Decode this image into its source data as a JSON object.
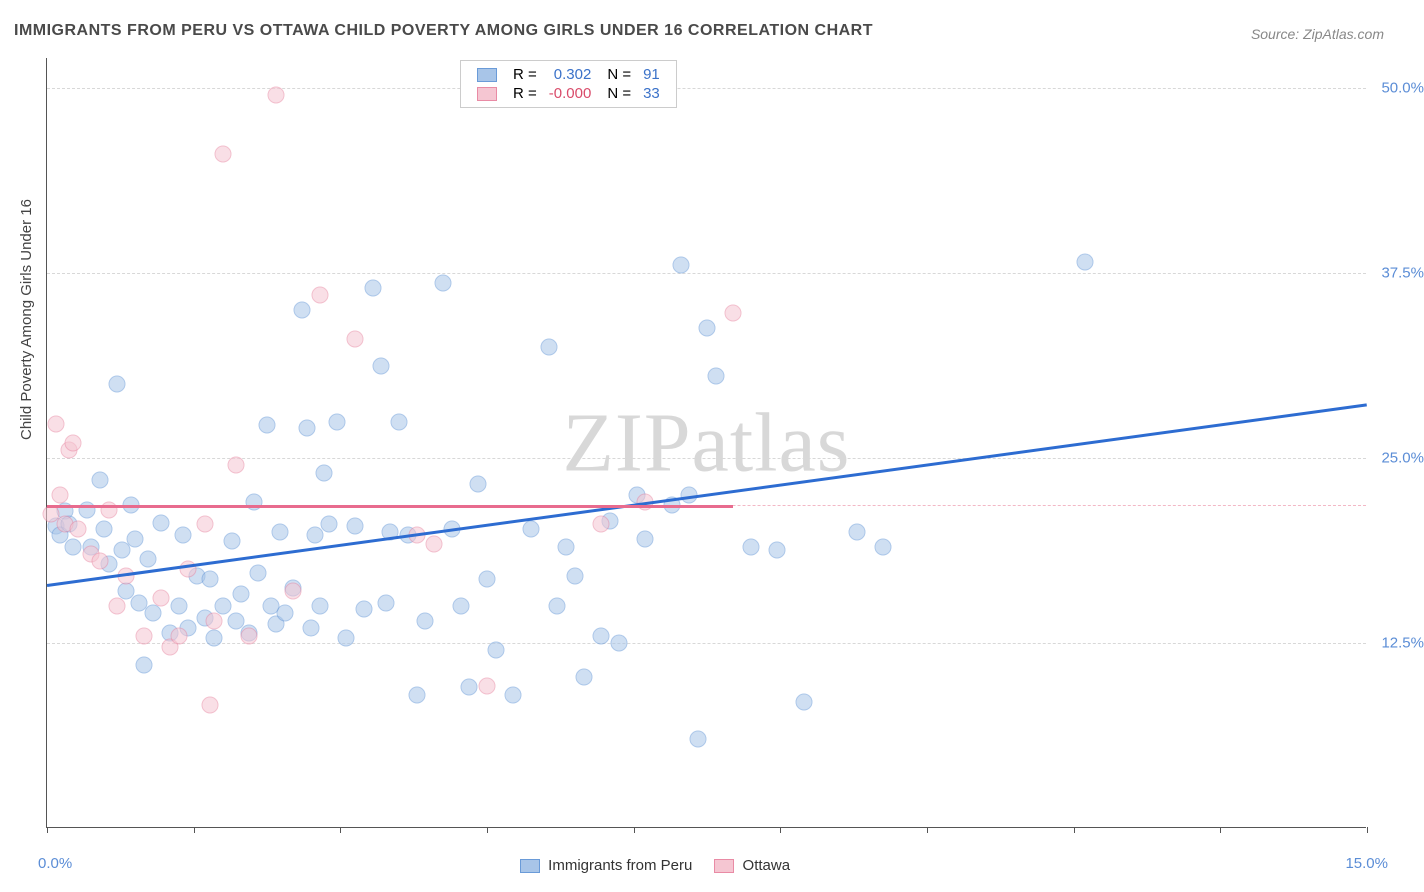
{
  "title": "IMMIGRANTS FROM PERU VS OTTAWA CHILD POVERTY AMONG GIRLS UNDER 16 CORRELATION CHART",
  "source": "Source: ZipAtlas.com",
  "y_axis_title": "Child Poverty Among Girls Under 16",
  "watermark_text": "ZIPatlas",
  "chart": {
    "type": "scatter",
    "xlim": [
      0,
      15
    ],
    "ylim": [
      0,
      52
    ],
    "x_ticks": [
      0,
      1.67,
      3.33,
      5.0,
      6.67,
      8.33,
      10.0,
      11.67,
      13.33,
      15.0
    ],
    "x_labels": {
      "0": "0.0%",
      "15": "15.0%"
    },
    "y_ticks": [
      12.5,
      25.0,
      37.5,
      50.0
    ],
    "y_labels": [
      "12.5%",
      "25.0%",
      "37.5%",
      "50.0%"
    ],
    "grid_color": "#d8d8d8",
    "background_color": "#ffffff",
    "axis_label_color": "#5b8dd6",
    "axis_label_fontsize": 15,
    "title_fontsize": 16,
    "title_color": "#4a4a4a",
    "point_radius": 8.5,
    "point_opacity": 0.55
  },
  "series": [
    {
      "name": "Immigrants from Peru",
      "color_fill": "#a8c5e8",
      "color_stroke": "#6a9bd8",
      "trend_color": "#2d6cd1",
      "trend_width": 2.5,
      "R": "0.302",
      "N": "91",
      "trend": {
        "x1": 0,
        "y1": 16.5,
        "x2": 15,
        "y2": 28.7
      },
      "points": [
        [
          0.1,
          20.4
        ],
        [
          0.15,
          19.8
        ],
        [
          0.2,
          21.4
        ],
        [
          0.25,
          20.5
        ],
        [
          0.3,
          19.0
        ],
        [
          0.45,
          21.5
        ],
        [
          0.5,
          19.0
        ],
        [
          0.6,
          23.5
        ],
        [
          0.65,
          20.2
        ],
        [
          0.7,
          17.8
        ],
        [
          0.8,
          30.0
        ],
        [
          0.85,
          18.8
        ],
        [
          0.9,
          16.0
        ],
        [
          0.95,
          21.8
        ],
        [
          1.0,
          19.5
        ],
        [
          1.05,
          15.2
        ],
        [
          1.1,
          11.0
        ],
        [
          1.15,
          18.2
        ],
        [
          1.2,
          14.5
        ],
        [
          1.3,
          20.6
        ],
        [
          1.4,
          13.2
        ],
        [
          1.5,
          15.0
        ],
        [
          1.55,
          19.8
        ],
        [
          1.6,
          13.5
        ],
        [
          1.7,
          17.0
        ],
        [
          1.8,
          14.2
        ],
        [
          1.85,
          16.8
        ],
        [
          1.9,
          12.8
        ],
        [
          2.0,
          15.0
        ],
        [
          2.1,
          19.4
        ],
        [
          2.15,
          14.0
        ],
        [
          2.2,
          15.8
        ],
        [
          2.3,
          13.2
        ],
        [
          2.35,
          22.0
        ],
        [
          2.4,
          17.2
        ],
        [
          2.5,
          27.2
        ],
        [
          2.55,
          15.0
        ],
        [
          2.6,
          13.8
        ],
        [
          2.65,
          20.0
        ],
        [
          2.7,
          14.5
        ],
        [
          2.8,
          16.2
        ],
        [
          2.9,
          35.0
        ],
        [
          2.95,
          27.0
        ],
        [
          3.0,
          13.5
        ],
        [
          3.05,
          19.8
        ],
        [
          3.1,
          15.0
        ],
        [
          3.2,
          20.5
        ],
        [
          3.3,
          27.4
        ],
        [
          3.4,
          12.8
        ],
        [
          3.5,
          20.4
        ],
        [
          3.6,
          14.8
        ],
        [
          3.7,
          36.5
        ],
        [
          3.8,
          31.2
        ],
        [
          3.85,
          15.2
        ],
        [
          3.9,
          20.0
        ],
        [
          4.0,
          27.4
        ],
        [
          4.1,
          19.8
        ],
        [
          4.2,
          9.0
        ],
        [
          4.3,
          14.0
        ],
        [
          4.5,
          36.8
        ],
        [
          4.6,
          20.2
        ],
        [
          4.7,
          15.0
        ],
        [
          4.8,
          9.5
        ],
        [
          4.9,
          23.2
        ],
        [
          5.0,
          16.8
        ],
        [
          5.1,
          12.0
        ],
        [
          5.3,
          9.0
        ],
        [
          5.5,
          20.2
        ],
        [
          5.7,
          32.5
        ],
        [
          5.8,
          15.0
        ],
        [
          5.9,
          19.0
        ],
        [
          6.0,
          17.0
        ],
        [
          6.1,
          10.2
        ],
        [
          6.3,
          13.0
        ],
        [
          6.4,
          20.7
        ],
        [
          6.5,
          12.5
        ],
        [
          6.7,
          22.5
        ],
        [
          6.8,
          19.5
        ],
        [
          7.1,
          21.8
        ],
        [
          7.2,
          38.0
        ],
        [
          7.3,
          22.5
        ],
        [
          7.4,
          6.0
        ],
        [
          7.5,
          33.8
        ],
        [
          7.6,
          30.5
        ],
        [
          8.0,
          19.0
        ],
        [
          8.3,
          18.8
        ],
        [
          8.6,
          8.5
        ],
        [
          9.2,
          20.0
        ],
        [
          9.5,
          19.0
        ],
        [
          11.8,
          38.2
        ],
        [
          3.15,
          24.0
        ]
      ]
    },
    {
      "name": "Ottawa",
      "color_fill": "#f5c6d2",
      "color_stroke": "#e98ba5",
      "trend_color": "#e86b8e",
      "trend_width": 2.5,
      "R": "-0.000",
      "N": "33",
      "trend": {
        "x1": 0,
        "y1": 21.8,
        "x2": 7.8,
        "y2": 21.8
      },
      "points": [
        [
          0.05,
          21.2
        ],
        [
          0.1,
          27.3
        ],
        [
          0.15,
          22.5
        ],
        [
          0.2,
          20.5
        ],
        [
          0.25,
          25.5
        ],
        [
          0.3,
          26.0
        ],
        [
          0.35,
          20.2
        ],
        [
          0.5,
          18.5
        ],
        [
          0.6,
          18.0
        ],
        [
          0.7,
          21.5
        ],
        [
          0.8,
          15.0
        ],
        [
          0.9,
          17.0
        ],
        [
          1.1,
          13.0
        ],
        [
          1.3,
          15.5
        ],
        [
          1.4,
          12.2
        ],
        [
          1.5,
          13.0
        ],
        [
          1.6,
          17.5
        ],
        [
          1.8,
          20.5
        ],
        [
          1.85,
          8.3
        ],
        [
          1.9,
          14.0
        ],
        [
          2.0,
          45.5
        ],
        [
          2.15,
          24.5
        ],
        [
          2.3,
          13.0
        ],
        [
          2.6,
          49.5
        ],
        [
          2.8,
          16.0
        ],
        [
          3.1,
          36.0
        ],
        [
          3.5,
          33.0
        ],
        [
          4.2,
          19.8
        ],
        [
          4.4,
          19.2
        ],
        [
          5.0,
          9.6
        ],
        [
          6.3,
          20.5
        ],
        [
          6.8,
          22.0
        ],
        [
          7.8,
          34.8
        ]
      ]
    }
  ],
  "legend_bottom": [
    {
      "label": "Immigrants from Peru",
      "fill": "#a8c5e8",
      "stroke": "#6a9bd8"
    },
    {
      "label": "Ottawa",
      "fill": "#f5c6d2",
      "stroke": "#e98ba5"
    }
  ]
}
